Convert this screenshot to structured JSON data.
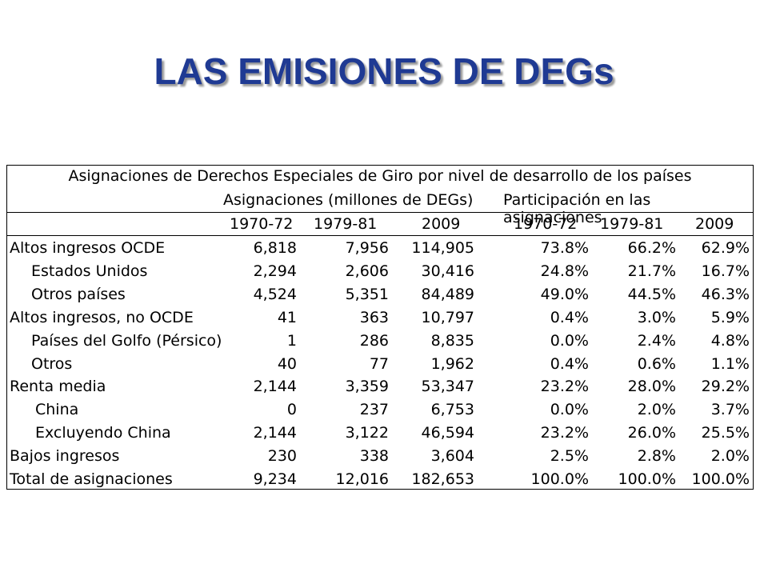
{
  "slide": {
    "title": "LAS EMISIONES DE DEGs"
  },
  "table": {
    "caption": "Asignaciones de Derechos Especiales de Giro por nivel de desarrollo de los países",
    "group_headers": {
      "allocations": "Asignaciones (millones de DEGs)",
      "shares": "Participación en las asignaciones"
    },
    "year_headers": [
      "1970-72",
      "1979-81",
      "2009",
      "1970-72",
      "1979-81",
      "2009"
    ],
    "rows": [
      {
        "label": "Altos ingresos OCDE",
        "indent": 0,
        "values": [
          "6,818",
          "7,956",
          "114,905",
          "73.8%",
          "66.2%",
          "62.9%"
        ]
      },
      {
        "label": "Estados Unidos",
        "indent": 1,
        "values": [
          "2,294",
          "2,606",
          "30,416",
          "24.8%",
          "21.7%",
          "16.7%"
        ]
      },
      {
        "label": "Otros países",
        "indent": 1,
        "values": [
          "4,524",
          "5,351",
          "84,489",
          "49.0%",
          "44.5%",
          "46.3%"
        ]
      },
      {
        "label": "Altos ingresos, no OCDE",
        "indent": 0,
        "values": [
          "41",
          "363",
          "10,797",
          "0.4%",
          "3.0%",
          "5.9%"
        ]
      },
      {
        "label": "Países del Golfo (Pérsico)",
        "indent": 1,
        "values": [
          "1",
          "286",
          "8,835",
          "0.0%",
          "2.4%",
          "4.8%"
        ]
      },
      {
        "label": "Otros",
        "indent": 1,
        "values": [
          "40",
          "77",
          "1,962",
          "0.4%",
          "0.6%",
          "1.1%"
        ]
      },
      {
        "label": "Renta media",
        "indent": 0,
        "values": [
          "2,144",
          "3,359",
          "53,347",
          "23.2%",
          "28.0%",
          "29.2%"
        ]
      },
      {
        "label": "China",
        "indent": 2,
        "values": [
          "0",
          "237",
          "6,753",
          "0.0%",
          "2.0%",
          "3.7%"
        ]
      },
      {
        "label": "Excluyendo China",
        "indent": 2,
        "values": [
          "2,144",
          "3,122",
          "46,594",
          "23.2%",
          "26.0%",
          "25.5%"
        ]
      },
      {
        "label": "Bajos ingresos",
        "indent": 0,
        "values": [
          "230",
          "338",
          "3,604",
          "2.5%",
          "2.8%",
          "2.0%"
        ]
      },
      {
        "label": "Total de asignaciones",
        "indent": 0,
        "values": [
          "9,234",
          "12,016",
          "182,653",
          "100.0%",
          "100.0%",
          "100.0%"
        ]
      }
    ]
  },
  "colors": {
    "title": "#1f3a93",
    "text": "#000000"
  }
}
